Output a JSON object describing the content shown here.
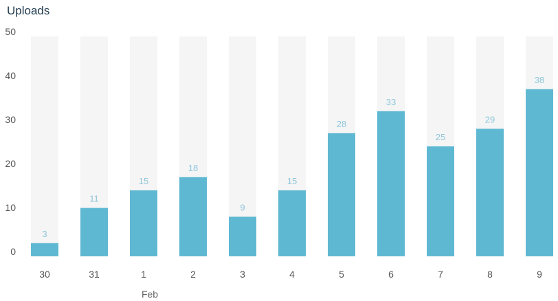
{
  "chart_data": {
    "type": "bar",
    "title": "Uploads",
    "categories": [
      "30",
      "31",
      "1",
      "2",
      "3",
      "4",
      "5",
      "6",
      "7",
      "8",
      "9"
    ],
    "category_sublabels": [
      "",
      "",
      "Feb",
      "",
      "",
      "",
      "",
      "",
      "",
      "",
      ""
    ],
    "values": [
      3,
      11,
      15,
      18,
      9,
      15,
      28,
      33,
      25,
      29,
      38
    ],
    "ylim": [
      0,
      50
    ],
    "yticks": [
      0,
      10,
      20,
      30,
      40,
      50
    ],
    "grid": false,
    "legend": "none",
    "colors": {
      "bar": "#5fb8d2",
      "track": "#f5f5f5",
      "data_label": "#8fc6d9",
      "title": "#1f3a4d"
    }
  }
}
